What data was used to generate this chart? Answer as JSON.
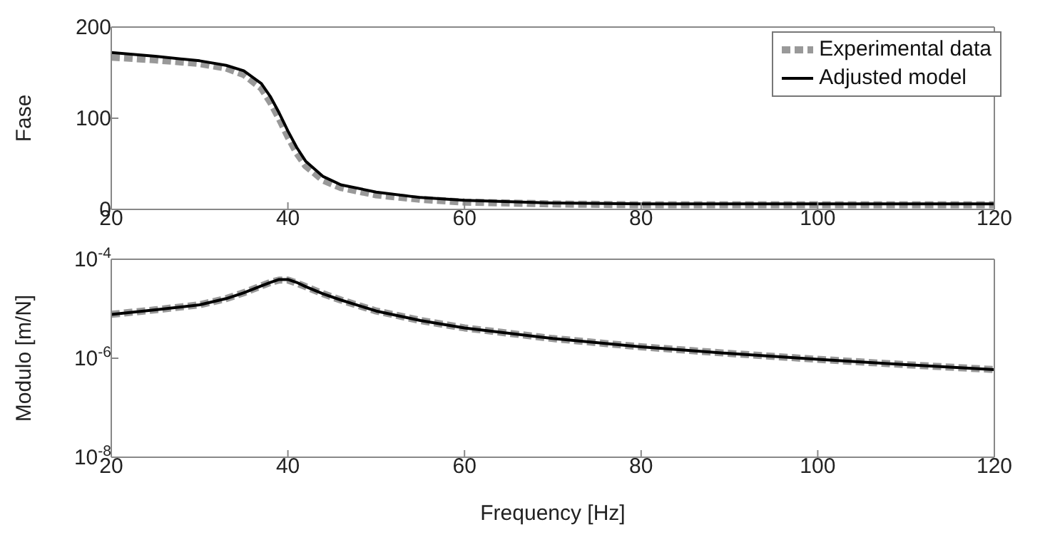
{
  "chart_data": [
    {
      "type": "line",
      "ylabel": "Fase",
      "xlim": [
        20,
        120
      ],
      "xticks": [
        20,
        40,
        60,
        80,
        100,
        120
      ],
      "ylim": [
        0,
        200
      ],
      "yticks": [
        0,
        100,
        200
      ],
      "legend": "top right",
      "grid": false,
      "series": [
        {
          "name": "Experimental data",
          "color": "#999999",
          "line_style": "dashed",
          "x": [
            20,
            25,
            30,
            33,
            35,
            37,
            38,
            39,
            40,
            41,
            42,
            44,
            46,
            50,
            55,
            60,
            70,
            80,
            90,
            100,
            110,
            120
          ],
          "values": [
            167,
            164,
            160,
            155,
            148,
            133,
            118,
            100,
            80,
            62,
            48,
            32,
            24,
            16,
            11,
            8,
            6,
            5,
            5,
            5,
            5,
            5
          ]
        },
        {
          "name": "Adjusted model",
          "color": "#000000",
          "line_style": "solid",
          "x": [
            20,
            25,
            30,
            33,
            35,
            37,
            38,
            39,
            40,
            41,
            42,
            44,
            46,
            50,
            55,
            60,
            70,
            80,
            90,
            100,
            110,
            120
          ],
          "values": [
            172,
            168,
            163,
            158,
            152,
            138,
            124,
            106,
            86,
            68,
            53,
            36,
            27,
            19,
            13,
            10,
            7,
            6,
            6,
            6,
            6,
            6
          ]
        }
      ]
    },
    {
      "type": "line",
      "xlabel": "Frequency [Hz]",
      "ylabel": "Modulo [m/N]",
      "log": "y",
      "xlim": [
        20,
        120
      ],
      "xticks": [
        20,
        40,
        60,
        80,
        100,
        120
      ],
      "ylim": [
        1e-08,
        0.0001
      ],
      "yticks": [
        {
          "value": 1e-08,
          "label": "10$^{-8}$"
        },
        {
          "value": 1e-06,
          "label": "10$^{-6}$"
        },
        {
          "value": 0.0001,
          "label": "10$^{-4}$"
        }
      ],
      "grid": false,
      "series": [
        {
          "color": "#999999",
          "line_style": "dashed",
          "x": [
            20,
            25,
            30,
            33,
            35,
            37,
            38,
            39,
            40,
            41,
            42,
            44,
            46,
            50,
            55,
            60,
            70,
            80,
            90,
            100,
            110,
            120
          ],
          "values": [
            7.7e-06,
            9.5e-06,
            1.2e-05,
            1.6e-05,
            2.1e-05,
            2.9e-05,
            3.4e-05,
            3.8e-05,
            3.8e-05,
            3.3e-05,
            2.8e-05,
            2e-05,
            1.5e-05,
            9e-06,
            5.8e-06,
            4.1e-06,
            2.5e-06,
            1.7e-06,
            1.25e-06,
            9.5e-07,
            7.4e-07,
            5.9e-07
          ]
        },
        {
          "color": "#000000",
          "line_style": "solid",
          "x": [
            20,
            25,
            30,
            33,
            35,
            37,
            38,
            39,
            40,
            41,
            42,
            44,
            46,
            50,
            55,
            60,
            70,
            80,
            90,
            100,
            110,
            120
          ],
          "values": [
            7.7e-06,
            9.5e-06,
            1.2e-05,
            1.6e-05,
            2.1e-05,
            2.9e-05,
            3.4e-05,
            3.9e-05,
            3.9e-05,
            3.4e-05,
            2.8e-05,
            2e-05,
            1.5e-05,
            9e-06,
            5.8e-06,
            4.1e-06,
            2.5e-06,
            1.7e-06,
            1.25e-06,
            9.5e-07,
            7.4e-07,
            5.9e-07
          ]
        }
      ]
    }
  ]
}
